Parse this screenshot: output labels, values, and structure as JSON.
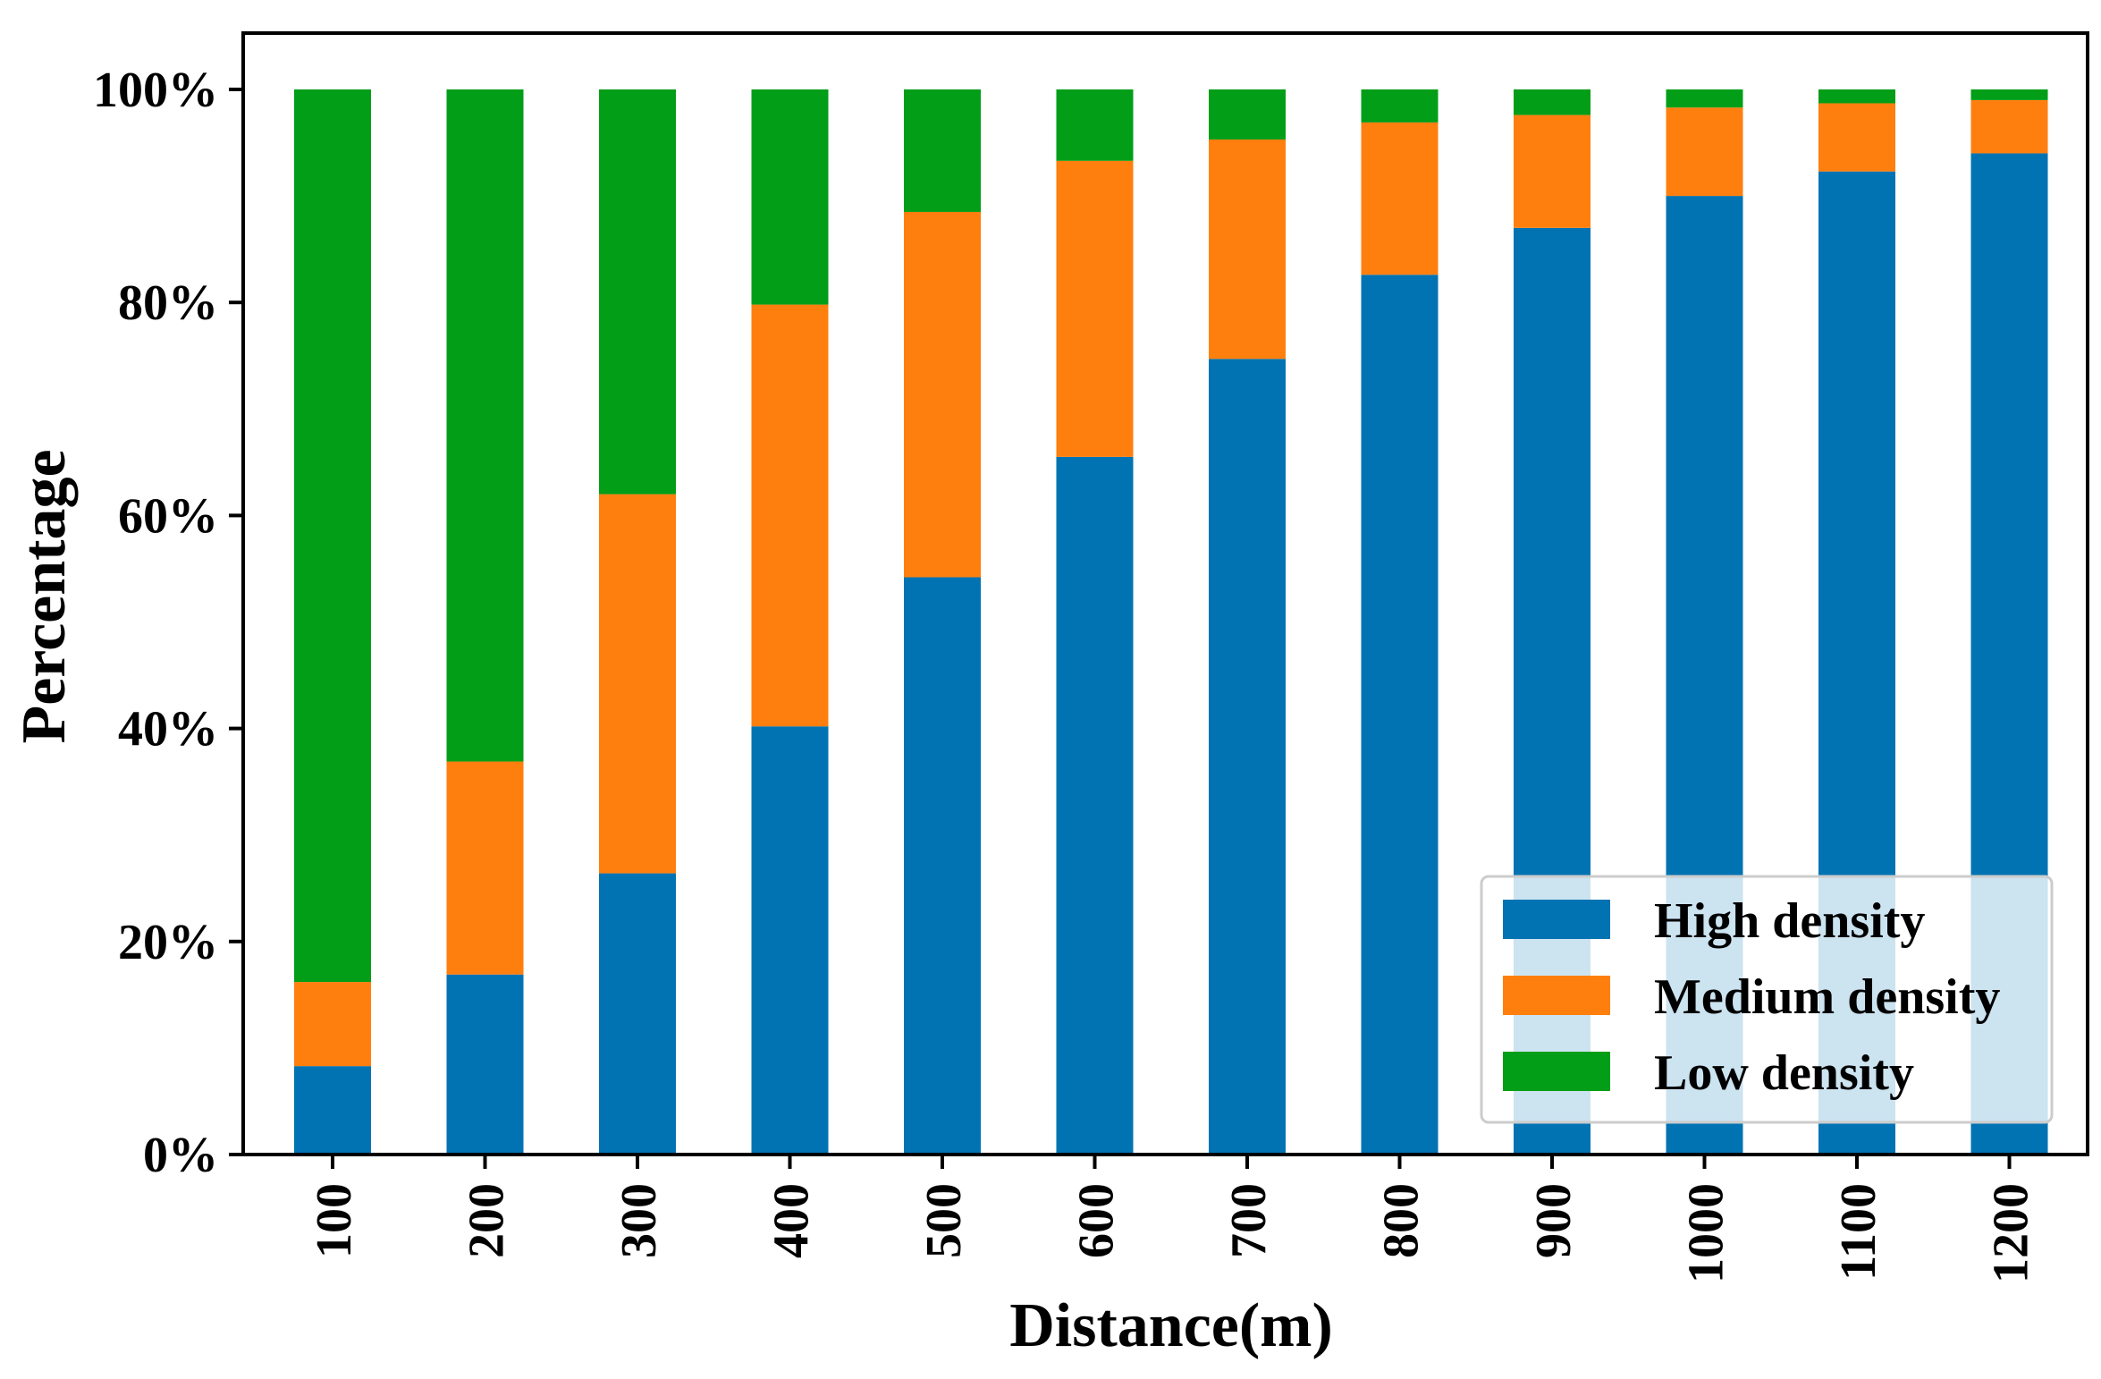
{
  "chart_data": {
    "type": "bar",
    "stacked": true,
    "title": "",
    "xlabel": "Distance(m)",
    "ylabel": "Percentage",
    "categories": [
      "100",
      "200",
      "300",
      "400",
      "500",
      "600",
      "700",
      "800",
      "900",
      "1000",
      "1100",
      "1200"
    ],
    "ylim": [
      0,
      1
    ],
    "yticks": [
      0,
      0.2,
      0.4,
      0.6,
      0.8,
      1.0
    ],
    "ytick_labels": [
      "0%",
      "20%",
      "40%",
      "60%",
      "80%",
      "100%"
    ],
    "grid": false,
    "legend_position": "bottom-right",
    "series": [
      {
        "name": "High density",
        "color": "#0173b2",
        "values": [
          0.083,
          0.169,
          0.264,
          0.402,
          0.542,
          0.655,
          0.747,
          0.826,
          0.87,
          0.9,
          0.923,
          0.94
        ]
      },
      {
        "name": "Medium density",
        "color": "#ff7f0e",
        "values": [
          0.079,
          0.2,
          0.356,
          0.396,
          0.343,
          0.278,
          0.206,
          0.143,
          0.106,
          0.083,
          0.064,
          0.05
        ]
      },
      {
        "name": "Low density",
        "color": "#029e18",
        "values": [
          0.838,
          0.631,
          0.38,
          0.202,
          0.115,
          0.067,
          0.047,
          0.031,
          0.024,
          0.017,
          0.013,
          0.01
        ]
      }
    ]
  }
}
